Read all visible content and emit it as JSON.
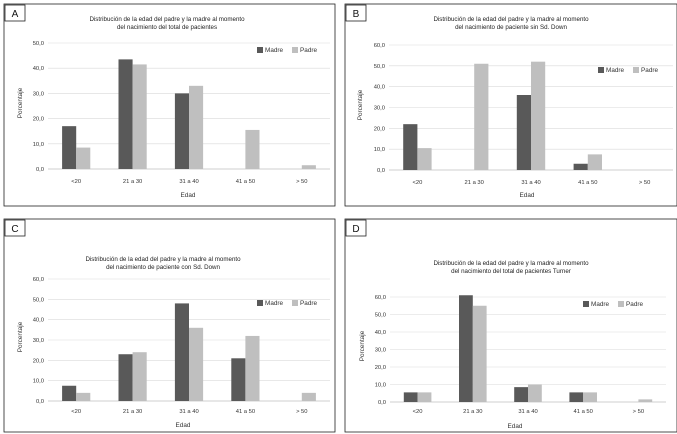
{
  "chart_data": [
    {
      "type": "bar",
      "panel_label": "A",
      "title_lines": [
        "Distribución de la edad del padre y la madre al momento",
        "del nacimiento del total de pacientes"
      ],
      "ylabel": "Porcentaje",
      "xlabel": "Edad",
      "categories": [
        "<20",
        "21 a 30",
        "31 a 40",
        "41 a 50",
        "> 50"
      ],
      "yticks": [
        "0,0",
        "10,0",
        "20,0",
        "30,0",
        "40,0",
        "50,0"
      ],
      "ylim": [
        0,
        50
      ],
      "grid": true,
      "legend_position": "top-right",
      "series": [
        {
          "name": "Madre",
          "color": "#595959",
          "values": [
            17,
            43.5,
            30,
            0,
            0
          ]
        },
        {
          "name": "Padre",
          "color": "#bfbfbf",
          "values": [
            8.5,
            41.5,
            33,
            15.5,
            1.5
          ]
        }
      ]
    },
    {
      "type": "bar",
      "panel_label": "B",
      "title_lines": [
        "Distribución de la edad del padre y la madre al momento",
        "del nacimiento de paciente sin Sd. Down"
      ],
      "ylabel": "Porcentaje",
      "xlabel": "Edad",
      "categories": [
        "<20",
        "21 a 30",
        "31 a 40",
        "41 a 50",
        "> 50"
      ],
      "yticks": [
        "0,0",
        "10,0",
        "20,0",
        "30,0",
        "40,0",
        "50,0",
        "60,0"
      ],
      "ylim": [
        0,
        60
      ],
      "grid": true,
      "legend_position": "top-right",
      "series": [
        {
          "name": "Madre",
          "color": "#595959",
          "values": [
            22,
            0,
            36,
            3,
            0
          ]
        },
        {
          "name": "Padre",
          "color": "#bfbfbf",
          "values": [
            10.5,
            51,
            52,
            7.5,
            0
          ]
        }
      ]
    },
    {
      "type": "bar",
      "panel_label": "C",
      "title_lines": [
        "Distribución de la edad del padre y la madre al momento",
        "del nacimiento de paciente con Sd. Down"
      ],
      "ylabel": "Porcentaje",
      "xlabel": "Edad",
      "categories": [
        "<20",
        "21 a 30",
        "31 a 40",
        "41 a 50",
        "> 50"
      ],
      "yticks": [
        "0,0",
        "10,0",
        "20,0",
        "30,0",
        "40,0",
        "50,0",
        "60,0"
      ],
      "ylim": [
        0,
        60
      ],
      "grid": true,
      "legend_position": "top-right",
      "series": [
        {
          "name": "Madre",
          "color": "#595959",
          "values": [
            7.5,
            23,
            48,
            21,
            0
          ]
        },
        {
          "name": "Padre",
          "color": "#bfbfbf",
          "values": [
            4,
            24,
            36,
            32,
            4
          ]
        }
      ]
    },
    {
      "type": "bar",
      "panel_label": "D",
      "title_lines": [
        "Distribución de la edad del padre y la madre al momento",
        "del nacimiento del total de pacientes Turner"
      ],
      "ylabel": "Porcentaje",
      "xlabel": "Edad",
      "categories": [
        "<20",
        "21 a 30",
        "31 a 40",
        "41 a 50",
        "> 50"
      ],
      "yticks": [
        "0,0",
        "10,0",
        "20,0",
        "30,0",
        "40,0",
        "50,0",
        "60,0"
      ],
      "ylim": [
        0,
        60
      ],
      "grid": true,
      "legend_position": "top-right",
      "series": [
        {
          "name": "Madre",
          "color": "#595959",
          "values": [
            5.5,
            61,
            8.5,
            5.5,
            0
          ]
        },
        {
          "name": "Padre",
          "color": "#bfbfbf",
          "values": [
            5.5,
            55,
            10,
            5.5,
            1.5
          ]
        }
      ]
    }
  ]
}
